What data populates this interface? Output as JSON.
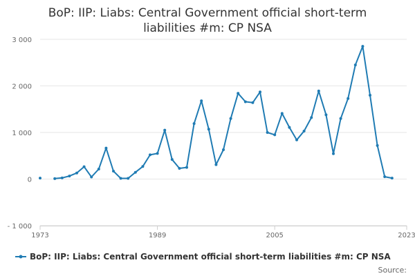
{
  "chart_data": {
    "type": "line",
    "title_line1": "BoP: IIP: Liabs: Central Government official short-term",
    "title_line2": "liabilities #m: CP NSA",
    "xlabel": "",
    "ylabel": "",
    "xlim": [
      1973,
      2023
    ],
    "ylim": [
      -1000,
      3000
    ],
    "x_ticks": [
      1973,
      1989,
      2005,
      2023
    ],
    "y_ticks": [
      {
        "value": 3000,
        "label": "3 000"
      },
      {
        "value": 2000,
        "label": "2 000"
      },
      {
        "value": 1000,
        "label": "1 000"
      },
      {
        "value": 0,
        "label": "0"
      },
      {
        "value": -1000,
        "label": "- 1 000"
      }
    ],
    "grid": true,
    "legend_position": "bottom",
    "colors": {
      "series": "#1f7bb3"
    },
    "series": [
      {
        "name": "BoP: IIP: Liabs: Central Government official short-term liabilities #m: CP NSA",
        "segments": [
          [
            [
              1973,
              20
            ]
          ],
          [
            [
              1975,
              10
            ],
            [
              1976,
              25
            ],
            [
              1977,
              65
            ],
            [
              1978,
              130
            ],
            [
              1979,
              265
            ],
            [
              1980,
              45
            ],
            [
              1981,
              215
            ],
            [
              1982,
              665
            ],
            [
              1983,
              170
            ],
            [
              1984,
              15
            ],
            [
              1985,
              15
            ],
            [
              1986,
              145
            ],
            [
              1987,
              270
            ],
            [
              1988,
              520
            ],
            [
              1989,
              550
            ],
            [
              1990,
              1050
            ],
            [
              1991,
              420
            ],
            [
              1992,
              230
            ],
            [
              1993,
              250
            ],
            [
              1994,
              1190
            ],
            [
              1995,
              1680
            ],
            [
              1996,
              1070
            ],
            [
              1997,
              310
            ],
            [
              1998,
              630
            ],
            [
              1999,
              1300
            ],
            [
              2000,
              1840
            ],
            [
              2001,
              1660
            ],
            [
              2002,
              1640
            ],
            [
              2003,
              1870
            ],
            [
              2004,
              1000
            ],
            [
              2005,
              950
            ],
            [
              2006,
              1410
            ],
            [
              2007,
              1110
            ],
            [
              2008,
              840
            ],
            [
              2009,
              1030
            ],
            [
              2010,
              1320
            ],
            [
              2011,
              1890
            ],
            [
              2012,
              1380
            ],
            [
              2013,
              545
            ],
            [
              2014,
              1300
            ],
            [
              2015,
              1730
            ],
            [
              2016,
              2450
            ],
            [
              2017,
              2850
            ],
            [
              2018,
              1800
            ],
            [
              2019,
              720
            ],
            [
              2020,
              50
            ],
            [
              2021,
              20
            ]
          ]
        ]
      }
    ]
  },
  "credits": {
    "label": "Source:"
  }
}
